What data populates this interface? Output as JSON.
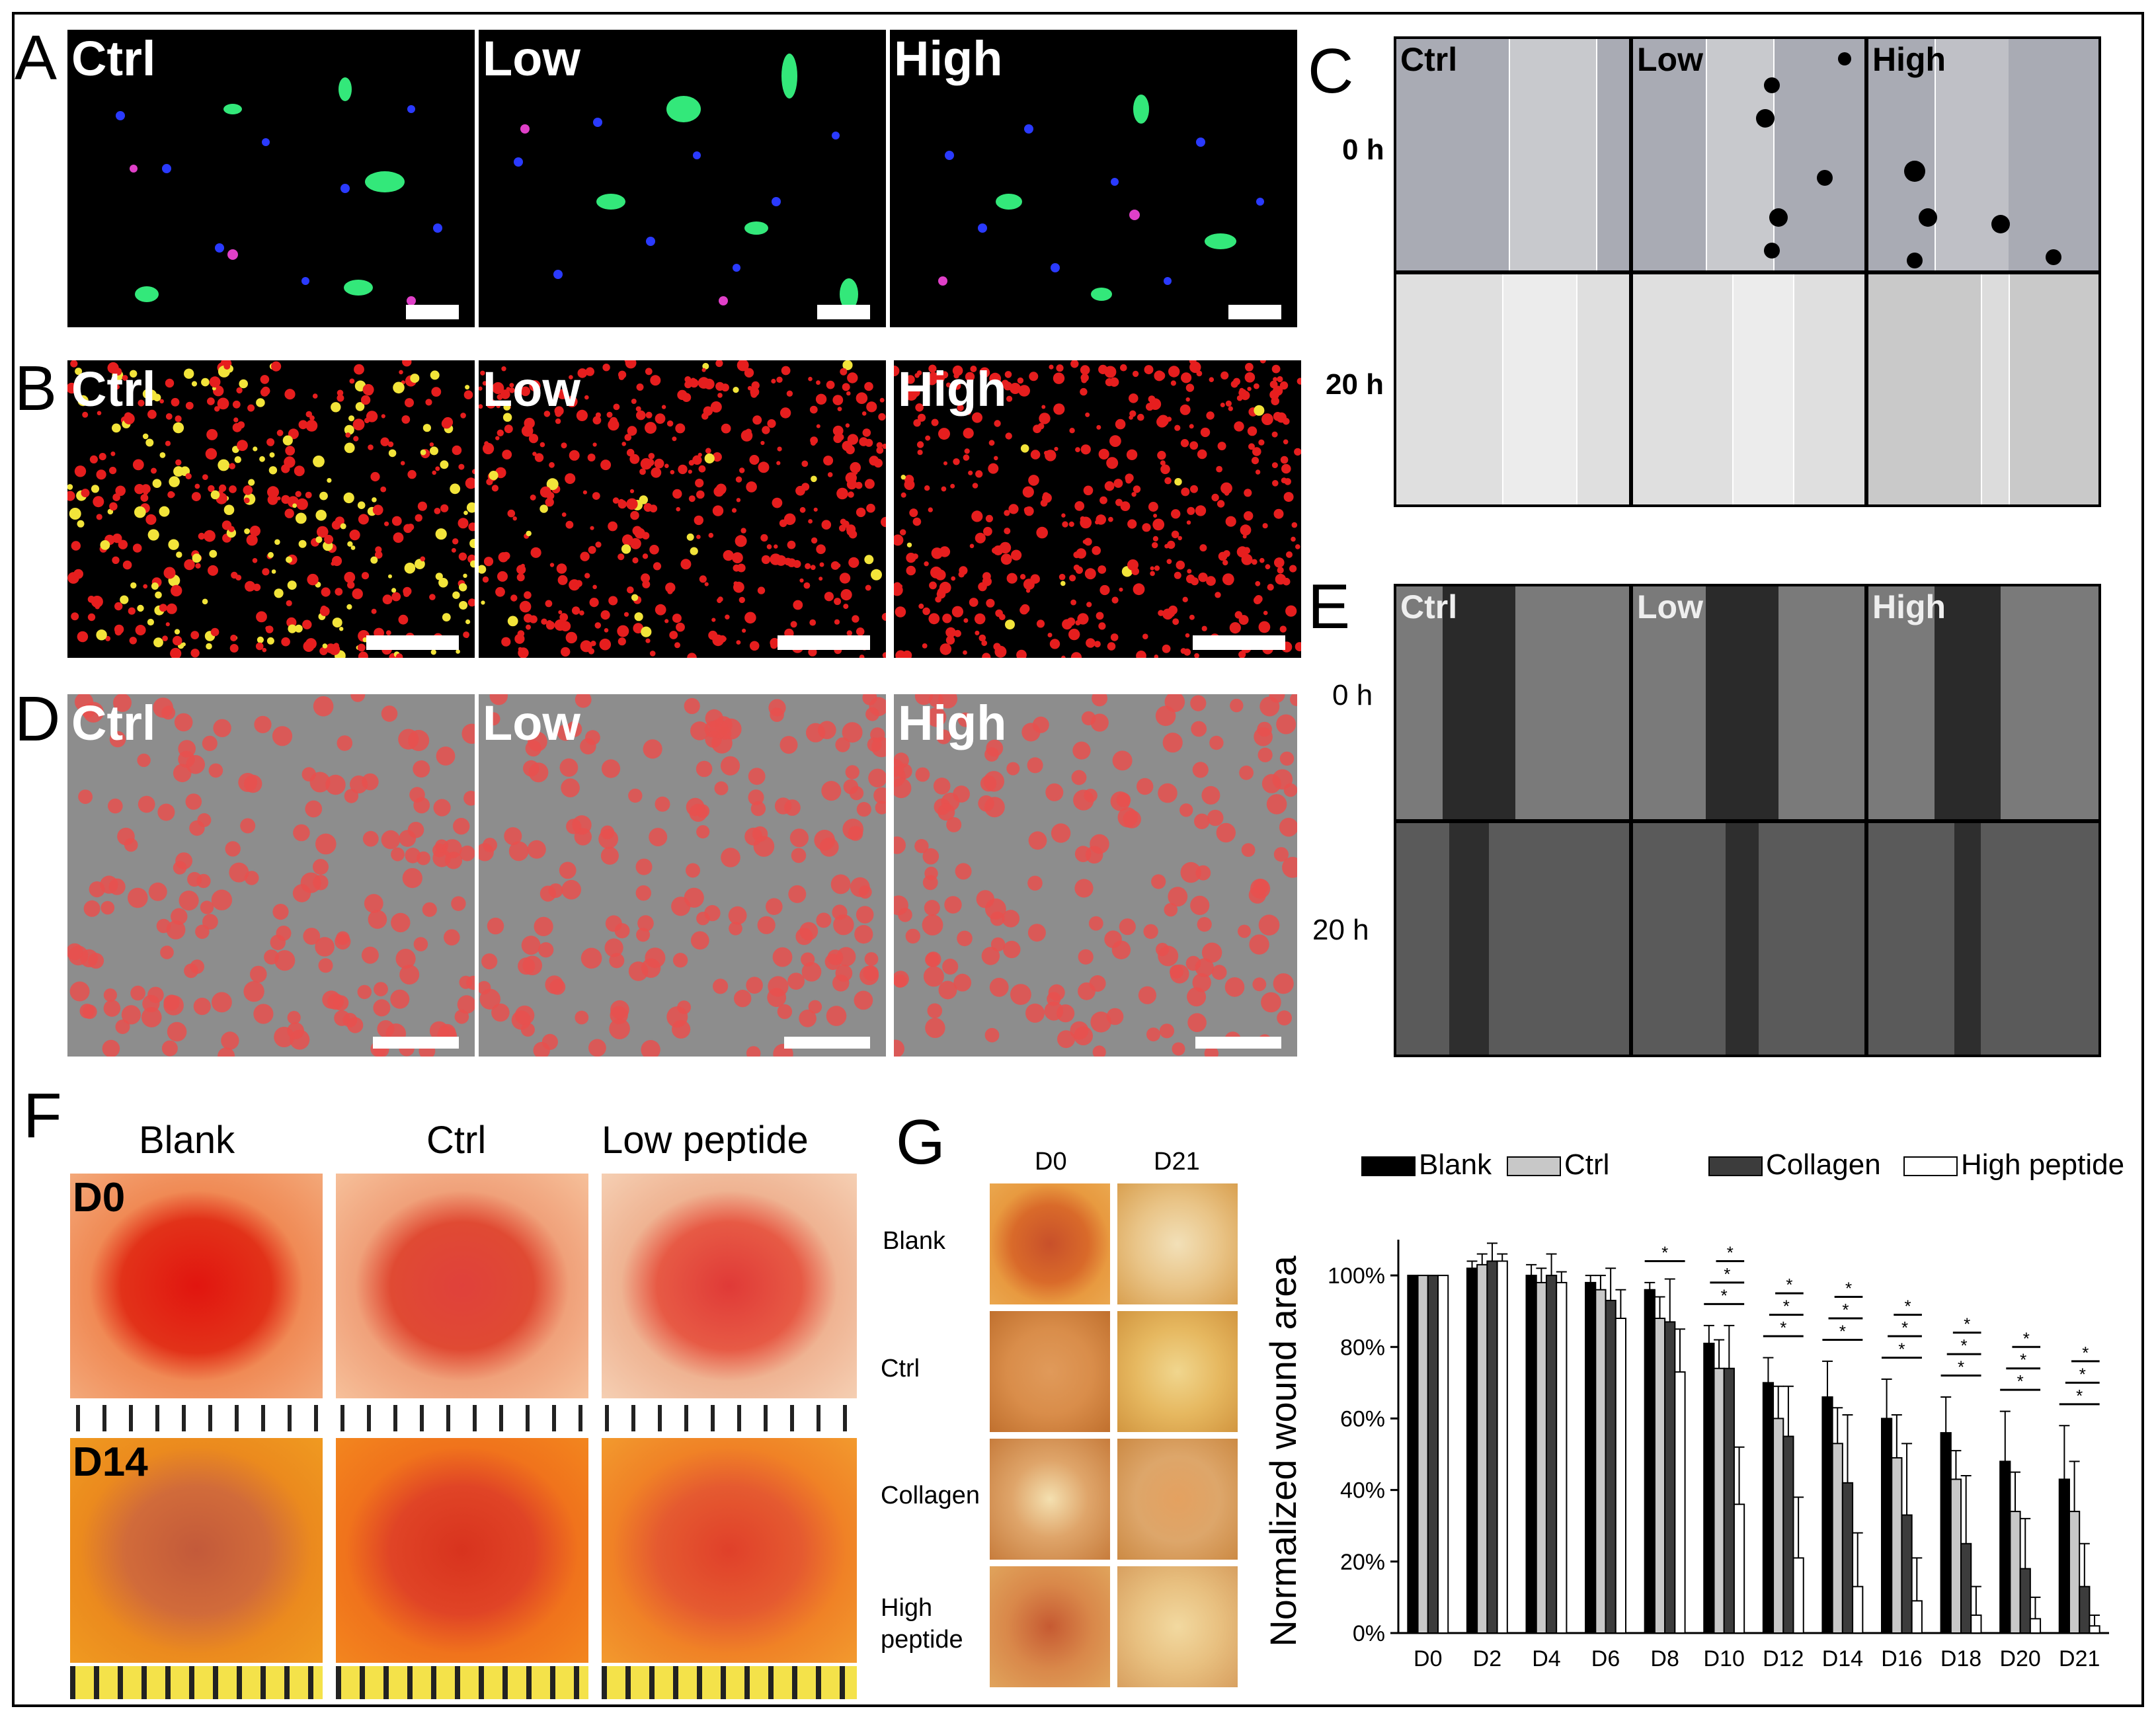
{
  "panels": {
    "A": {
      "label": "A",
      "tags": [
        "Ctrl",
        "Low",
        "High"
      ]
    },
    "B": {
      "label": "B",
      "tags": [
        "Ctrl",
        "Low",
        "High"
      ]
    },
    "C": {
      "label": "C",
      "tags": [
        "Ctrl",
        "Low",
        "High"
      ],
      "rows": [
        "0 h",
        "20 h"
      ]
    },
    "D": {
      "label": "D",
      "tags": [
        "Ctrl",
        "Low",
        "High"
      ]
    },
    "E": {
      "label": "E",
      "tags": [
        "Ctrl",
        "Low",
        "High"
      ],
      "rows": [
        "0 h",
        "20 h"
      ]
    },
    "F": {
      "label": "F",
      "cols": [
        "Blank",
        "Ctrl",
        "Low peptide"
      ],
      "rows": [
        "D0",
        "D14"
      ]
    },
    "G": {
      "label": "G",
      "cols": [
        "D0",
        "D21"
      ],
      "rows": [
        "Blank",
        "Ctrl",
        "Collagen",
        "High",
        "peptide"
      ]
    }
  },
  "colors": {
    "bar_blank": "#000000",
    "bar_ctrl": "#c8c8c8",
    "bar_collagen": "#3c3c3c",
    "bar_high": "#ffffff",
    "red_cells": "#e61e1e"
  },
  "chart_data": {
    "type": "bar",
    "ylabel": "Normalized wound area",
    "categories": [
      "D0",
      "D2",
      "D4",
      "D6",
      "D8",
      "D10",
      "D12",
      "D14",
      "D16",
      "D18",
      "D20",
      "D21"
    ],
    "yticks": [
      "0%",
      "20%",
      "40%",
      "60%",
      "80%",
      "100%"
    ],
    "ylim": [
      0,
      110
    ],
    "legend_position": "top",
    "series": [
      {
        "name": "Blank",
        "color": "#000000",
        "values": [
          100,
          102,
          100,
          98,
          96,
          81,
          70,
          66,
          60,
          56,
          48,
          43
        ],
        "err": [
          0,
          2,
          3,
          2,
          2,
          5,
          7,
          10,
          11,
          10,
          14,
          15
        ]
      },
      {
        "name": "Ctrl",
        "color": "#c8c8c8",
        "values": [
          100,
          103,
          98,
          96,
          88,
          74,
          60,
          53,
          49,
          43,
          34,
          34
        ],
        "err": [
          0,
          3,
          4,
          4,
          6,
          8,
          9,
          10,
          12,
          8,
          11,
          14
        ]
      },
      {
        "name": "Collagen",
        "color": "#3c3c3c",
        "values": [
          100,
          104,
          100,
          93,
          87,
          74,
          55,
          42,
          33,
          25,
          18,
          13
        ],
        "err": [
          0,
          5,
          6,
          9,
          12,
          12,
          14,
          19,
          20,
          19,
          14,
          12
        ]
      },
      {
        "name": "High peptide",
        "color": "#ffffff",
        "values": [
          100,
          104,
          98,
          88,
          73,
          36,
          21,
          13,
          9,
          5,
          4,
          2
        ],
        "err": [
          0,
          2,
          3,
          8,
          12,
          16,
          17,
          15,
          12,
          8,
          6,
          3
        ]
      }
    ],
    "significance": "*"
  }
}
